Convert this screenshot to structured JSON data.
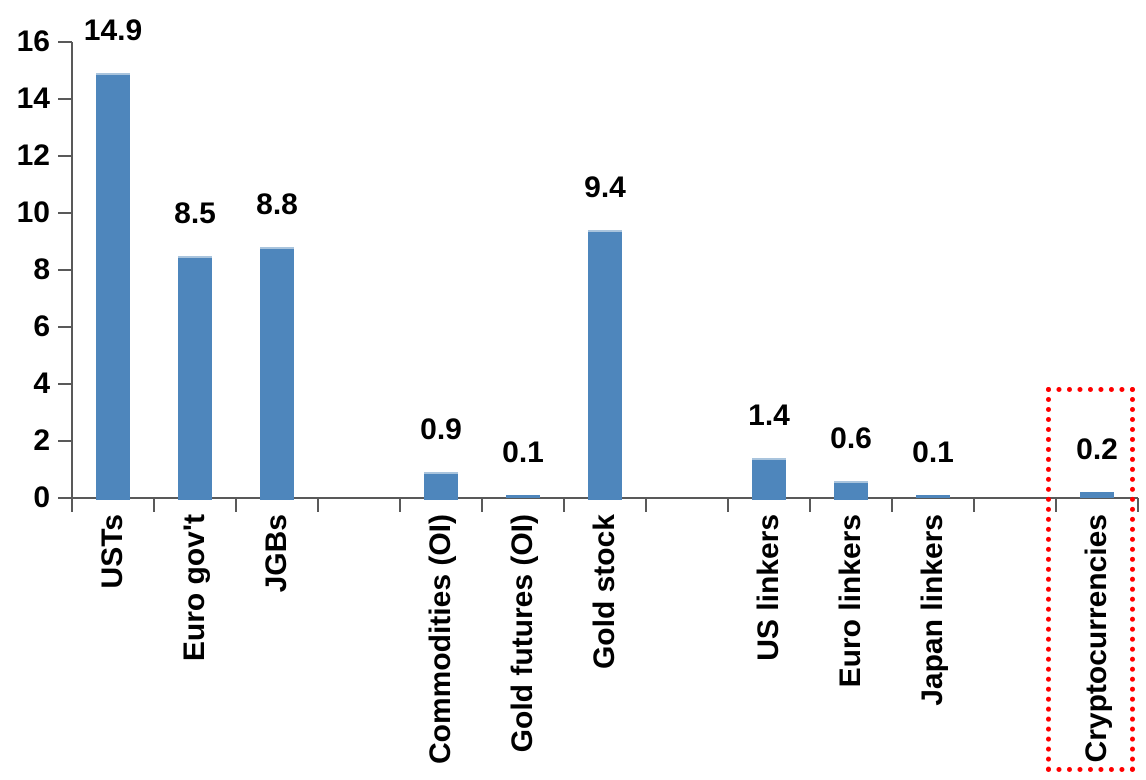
{
  "chart_data": {
    "type": "bar",
    "title": "",
    "xlabel": "",
    "ylabel": "",
    "categories": [
      "USTs",
      "Euro gov't",
      "JGBs",
      null,
      "Commodities (OI)",
      "Gold futures (OI)",
      "Gold stock",
      null,
      "US linkers",
      "Euro linkers",
      "Japan linkers",
      null,
      "Cryptocurrencies"
    ],
    "values": [
      14.9,
      8.5,
      8.8,
      null,
      0.9,
      0.1,
      9.4,
      null,
      1.4,
      0.6,
      0.1,
      null,
      0.2
    ],
    "data_labels": [
      "14.9",
      "8.5",
      "8.8",
      null,
      "0.9",
      "0.1",
      "9.4",
      null,
      "1.4",
      "0.6",
      "0.1",
      null,
      "0.2"
    ],
    "ylim": [
      0,
      16
    ],
    "yticks": [
      0,
      2,
      4,
      6,
      8,
      10,
      12,
      14,
      16
    ],
    "grid": false,
    "legend": false,
    "x_label_rotation_deg": 90,
    "colors": {
      "bar_fill": "#4E86BC",
      "bar_top_edge": "#A9C4DD",
      "axis": "#595959",
      "text": "#000000",
      "highlight_box": "#FF0000"
    },
    "highlight": {
      "category": "Cryptocurrencies",
      "style": "red-dotted-box"
    }
  }
}
